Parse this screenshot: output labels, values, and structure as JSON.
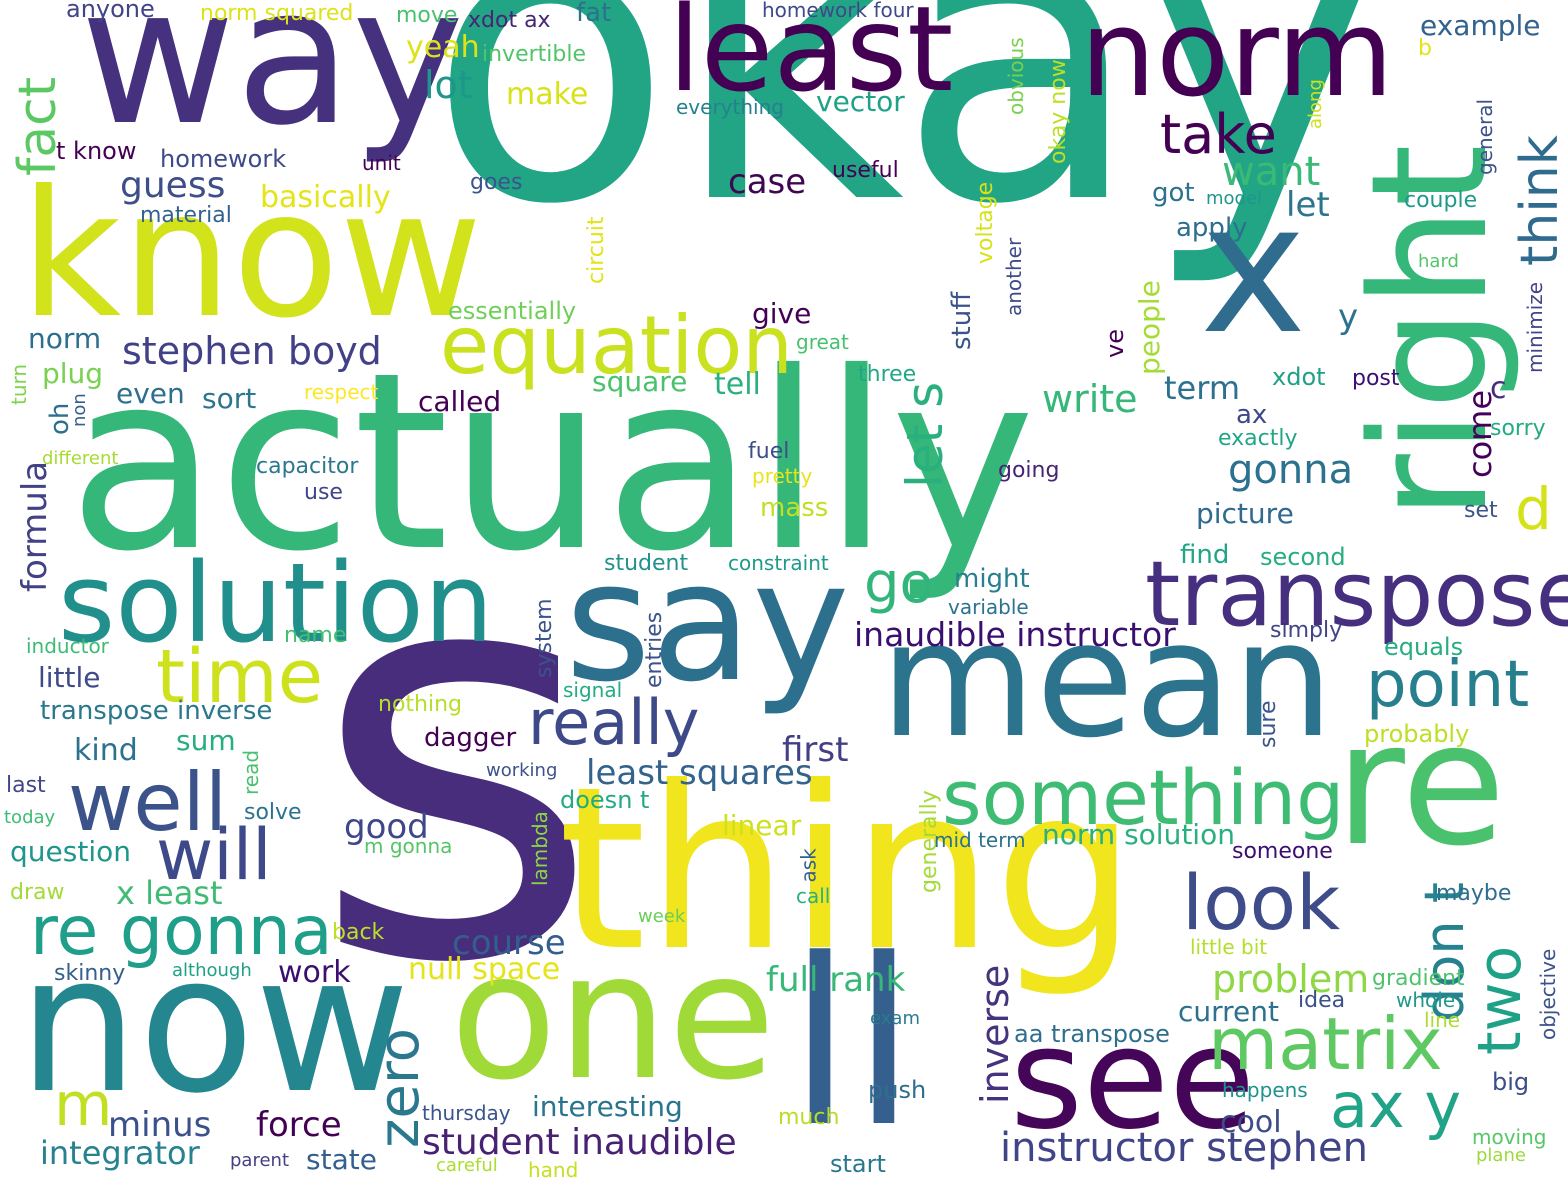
{
  "words": [
    {
      "text": "okay",
      "color": "#21a585"
    },
    {
      "text": "s",
      "color": "#472d7b"
    },
    {
      "text": "actually",
      "color": "#35b779"
    },
    {
      "text": "thing",
      "color": "#f1e51d"
    },
    {
      "text": "way",
      "color": "#46317e"
    },
    {
      "text": "know",
      "color": "#d2e21b"
    },
    {
      "text": "now",
      "color": "#24868e"
    },
    {
      "text": "one",
      "color": "#a0da39"
    },
    {
      "text": "say",
      "color": "#2d708e"
    },
    {
      "text": "mean",
      "color": "#2c738e"
    },
    {
      "text": "re",
      "color": "#4ac16d"
    },
    {
      "text": "right",
      "color": "#35b779"
    },
    {
      "text": "least",
      "color": "#440154"
    },
    {
      "text": "norm",
      "color": "#440154"
    },
    {
      "text": "x",
      "color": "#2f6c8e"
    },
    {
      "text": "ll",
      "color": "#355f8d"
    },
    {
      "text": "see",
      "color": "#450559"
    },
    {
      "text": "solution",
      "color": "#21908d"
    },
    {
      "text": "transpose",
      "color": "#462f7f"
    },
    {
      "text": "equation",
      "color": "#cae11f"
    },
    {
      "text": "something",
      "color": "#3fbc73"
    },
    {
      "text": "well",
      "color": "#3b528b"
    },
    {
      "text": "will",
      "color": "#3e4989"
    },
    {
      "text": "really",
      "color": "#3e4989"
    },
    {
      "text": "time",
      "color": "#cde11d"
    },
    {
      "text": "re gonna",
      "color": "#1f9e89"
    },
    {
      "text": "look",
      "color": "#3e4c8a"
    },
    {
      "text": "matrix",
      "color": "#5ec962"
    },
    {
      "text": "point",
      "color": "#277f8e"
    },
    {
      "text": "take",
      "color": "#440154"
    },
    {
      "text": "go",
      "color": "#31b57b"
    },
    {
      "text": "let s",
      "color": "#2ab07f"
    },
    {
      "text": "think",
      "color": "#2f6b8e"
    },
    {
      "text": "don t",
      "color": "#26828e"
    },
    {
      "text": "two",
      "color": "#1fa187"
    },
    {
      "text": "ax y",
      "color": "#20a386"
    },
    {
      "text": "zero",
      "color": "#2a788e"
    },
    {
      "text": "fact",
      "color": "#5cc863"
    },
    {
      "text": "m",
      "color": "#c2df23"
    },
    {
      "text": "instructor stephen",
      "color": "#414487"
    },
    {
      "text": "student inaudible",
      "color": "#482173"
    },
    {
      "text": "stephen boyd",
      "color": "#424086"
    },
    {
      "text": "inaudible instructor",
      "color": "#3b0f70"
    },
    {
      "text": "least squares",
      "color": "#33638d"
    },
    {
      "text": "guess",
      "color": "#3d4e8a"
    },
    {
      "text": "want",
      "color": "#3aba76"
    },
    {
      "text": "case",
      "color": "#3e0751"
    },
    {
      "text": "lot",
      "color": "#1f968b"
    },
    {
      "text": "make",
      "color": "#d8e219"
    },
    {
      "text": "yeah",
      "color": "#dde318"
    },
    {
      "text": "vector",
      "color": "#1fa287"
    },
    {
      "text": "gonna",
      "color": "#2c728e"
    },
    {
      "text": "problem",
      "color": "#8fd744"
    },
    {
      "text": "inverse",
      "color": "#46337e"
    },
    {
      "text": "write",
      "color": "#35b779"
    },
    {
      "text": "d",
      "color": "#d5e21a"
    },
    {
      "text": "course",
      "color": "#345f8d"
    },
    {
      "text": "full rank",
      "color": "#37b878"
    },
    {
      "text": "null space",
      "color": "#e5e419"
    },
    {
      "text": "formula",
      "color": "#424186"
    },
    {
      "text": "first",
      "color": "#433e85"
    },
    {
      "text": "good",
      "color": "#3f4788"
    },
    {
      "text": "minus",
      "color": "#3b518b"
    },
    {
      "text": "force",
      "color": "#440154"
    },
    {
      "text": "integrator",
      "color": "#26828e"
    },
    {
      "text": "interesting",
      "color": "#2b748e"
    },
    {
      "text": "current",
      "color": "#2d718e"
    },
    {
      "text": "norm solution",
      "color": "#2ab07f"
    },
    {
      "text": "term",
      "color": "#2c728e"
    },
    {
      "text": "picture",
      "color": "#306a8e"
    },
    {
      "text": "come",
      "color": "#44015a"
    },
    {
      "text": "work",
      "color": "#3b0f70"
    },
    {
      "text": "state",
      "color": "#355f8d"
    },
    {
      "text": "cool",
      "color": "#3d4d8a"
    },
    {
      "text": "kind",
      "color": "#2c728e"
    },
    {
      "text": "sum",
      "color": "#27ad81"
    },
    {
      "text": "x least",
      "color": "#3fbc73"
    },
    {
      "text": "question",
      "color": "#1f968b"
    },
    {
      "text": "little",
      "color": "#3e4a89"
    },
    {
      "text": "transpose inverse",
      "color": "#2a788e"
    },
    {
      "text": "linear",
      "color": "#cde11d"
    },
    {
      "text": "doesn t",
      "color": "#24aa83"
    },
    {
      "text": "dagger",
      "color": "#440154"
    },
    {
      "text": "give",
      "color": "#440154"
    },
    {
      "text": "tell",
      "color": "#2ab07f"
    },
    {
      "text": "square",
      "color": "#4ac16d"
    },
    {
      "text": "called",
      "color": "#440154"
    },
    {
      "text": "sort",
      "color": "#2b758e"
    },
    {
      "text": "even",
      "color": "#2e6f8e"
    },
    {
      "text": "norm",
      "color": "#2d708e"
    },
    {
      "text": "plug",
      "color": "#7ad151"
    },
    {
      "text": "basically",
      "color": "#e5e419"
    },
    {
      "text": "homework",
      "color": "#3e4a89"
    },
    {
      "text": "t know",
      "color": "#440154"
    },
    {
      "text": "material",
      "color": "#33638d"
    },
    {
      "text": "essentially",
      "color": "#70cf57"
    },
    {
      "text": "people",
      "color": "#a5db36"
    },
    {
      "text": "stuff",
      "color": "#3a538b"
    },
    {
      "text": "y",
      "color": "#2c718e"
    },
    {
      "text": "let",
      "color": "#2b758e"
    },
    {
      "text": "got",
      "color": "#2c728e"
    },
    {
      "text": "apply",
      "color": "#2e6e8e"
    },
    {
      "text": "example",
      "color": "#33638d"
    },
    {
      "text": "mass",
      "color": "#c2df23"
    },
    {
      "text": "gradient",
      "color": "#4ec36b"
    },
    {
      "text": "equals",
      "color": "#26ad81"
    },
    {
      "text": "aa transpose",
      "color": "#2e6f8e"
    },
    {
      "text": "someone",
      "color": "#3b0f70"
    },
    {
      "text": "probably",
      "color": "#bddf26"
    },
    {
      "text": "push",
      "color": "#2e6e8e"
    },
    {
      "text": "big",
      "color": "#3d4e8a"
    },
    {
      "text": "maybe",
      "color": "#2e6e8e"
    },
    {
      "text": "find",
      "color": "#21a685"
    },
    {
      "text": "second",
      "color": "#26ad81"
    },
    {
      "text": "ax",
      "color": "#3e4989"
    },
    {
      "text": "exactly",
      "color": "#22a785"
    },
    {
      "text": "might",
      "color": "#27808e"
    },
    {
      "text": "variable",
      "color": "#2c738e"
    },
    {
      "text": "capacitor",
      "color": "#2a788e"
    },
    {
      "text": "use",
      "color": "#3f4788"
    },
    {
      "text": "fuel",
      "color": "#3d4e8a"
    },
    {
      "text": "pretty",
      "color": "#e7e419"
    },
    {
      "text": "going",
      "color": "#482475"
    },
    {
      "text": "student",
      "color": "#20928c"
    },
    {
      "text": "constraint",
      "color": "#1f9a8a"
    },
    {
      "text": "system",
      "color": "#3b528b"
    },
    {
      "text": "entries",
      "color": "#3a538b"
    },
    {
      "text": "signal",
      "color": "#25ab82"
    },
    {
      "text": "nothing",
      "color": "#b8de29"
    },
    {
      "text": "name",
      "color": "#44bf70"
    },
    {
      "text": "inductor",
      "color": "#3fbc73"
    },
    {
      "text": "simply",
      "color": "#414487"
    },
    {
      "text": "sure",
      "color": "#3a548c"
    },
    {
      "text": "idea",
      "color": "#3b518b"
    },
    {
      "text": "whole",
      "color": "#1f9a8a"
    },
    {
      "text": "line",
      "color": "#addc30"
    },
    {
      "text": "exam",
      "color": "#287c8e"
    },
    {
      "text": "happens",
      "color": "#20928c"
    },
    {
      "text": "little bit",
      "color": "#b5de2b"
    },
    {
      "text": "moving",
      "color": "#56c667"
    },
    {
      "text": "plane",
      "color": "#9dd93b"
    },
    {
      "text": "much",
      "color": "#bade28"
    },
    {
      "text": "thursday",
      "color": "#3a548c"
    },
    {
      "text": "hand",
      "color": "#c5e021"
    },
    {
      "text": "start",
      "color": "#2a788e"
    },
    {
      "text": "parent",
      "color": "#433e85"
    },
    {
      "text": "careful",
      "color": "#addc30"
    },
    {
      "text": "although",
      "color": "#1fa188"
    },
    {
      "text": "skinny",
      "color": "#355f8d"
    },
    {
      "text": "back",
      "color": "#bddf26"
    },
    {
      "text": "draw",
      "color": "#a2da37"
    },
    {
      "text": "m gonna",
      "color": "#54c568"
    },
    {
      "text": "solve",
      "color": "#2c728e"
    },
    {
      "text": "today",
      "color": "#3dbc74"
    },
    {
      "text": "last",
      "color": "#404688"
    },
    {
      "text": "read",
      "color": "#4ac16d"
    },
    {
      "text": "working",
      "color": "#3b528b"
    },
    {
      "text": "lambda",
      "color": "#8bd646"
    },
    {
      "text": "ask",
      "color": "#355f8d"
    },
    {
      "text": "call",
      "color": "#2ab07f"
    },
    {
      "text": "week",
      "color": "#6ccd5a"
    },
    {
      "text": "generally",
      "color": "#a5db36"
    },
    {
      "text": "mid term",
      "color": "#2c728e"
    },
    {
      "text": "different",
      "color": "#a8db34"
    },
    {
      "text": "non",
      "color": "#355f8d"
    },
    {
      "text": "turn",
      "color": "#7fd34e"
    },
    {
      "text": "oh",
      "color": "#2d708e"
    },
    {
      "text": "respect",
      "color": "#fde725"
    },
    {
      "text": "three",
      "color": "#22a785"
    },
    {
      "text": "great",
      "color": "#48c16e"
    },
    {
      "text": "ve",
      "color": "#440154"
    },
    {
      "text": "xdot",
      "color": "#1fa088"
    },
    {
      "text": "post",
      "color": "#3b0f70"
    },
    {
      "text": "c",
      "color": "#472d7b"
    },
    {
      "text": "sorry",
      "color": "#25ab82"
    },
    {
      "text": "set",
      "color": "#3a548c"
    },
    {
      "text": "anyone",
      "color": "#414487"
    },
    {
      "text": "norm squared",
      "color": "#dde318"
    },
    {
      "text": "move",
      "color": "#4ac16d"
    },
    {
      "text": "xdot ax",
      "color": "#482475"
    },
    {
      "text": "fat",
      "color": "#2c728e"
    },
    {
      "text": "homework four",
      "color": "#3e4989"
    },
    {
      "text": "invertible",
      "color": "#52c569"
    },
    {
      "text": "everything",
      "color": "#27808e"
    },
    {
      "text": "unit",
      "color": "#440154"
    },
    {
      "text": "goes",
      "color": "#3a548c"
    },
    {
      "text": "useful",
      "color": "#440154"
    },
    {
      "text": "circuit",
      "color": "#e2e418"
    },
    {
      "text": "voltage",
      "color": "#d8e219"
    },
    {
      "text": "another",
      "color": "#3e4c8a"
    },
    {
      "text": "obvious",
      "color": "#7ad151"
    },
    {
      "text": "okay now",
      "color": "#bddf26"
    },
    {
      "text": "model",
      "color": "#1f968b"
    },
    {
      "text": "b",
      "color": "#e3e418"
    },
    {
      "text": "couple",
      "color": "#1f9a8a"
    },
    {
      "text": "along",
      "color": "#d0e11c"
    },
    {
      "text": "general",
      "color": "#3b518b"
    },
    {
      "text": "hard",
      "color": "#54c568"
    },
    {
      "text": "minimize",
      "color": "#414487"
    },
    {
      "text": "objective",
      "color": "#3b528b"
    }
  ]
}
